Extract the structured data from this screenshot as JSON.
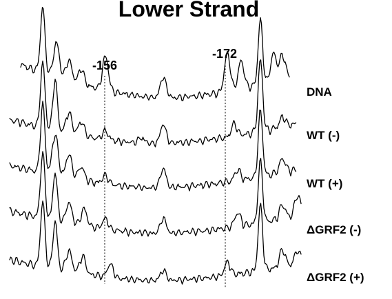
{
  "chart_data": {
    "type": "line",
    "title": "Lower Strand",
    "markers": [
      {
        "label": "-156"
      },
      {
        "label": "-172"
      }
    ],
    "series": [
      {
        "name": "DNA"
      },
      {
        "name": "WT (-)"
      },
      {
        "name": "WT (+)"
      },
      {
        "name": "ΔGRF2 (-)"
      },
      {
        "name": "ΔGRF2 (+)"
      }
    ],
    "line_color": "#000000",
    "grid": false,
    "legend": "right"
  }
}
